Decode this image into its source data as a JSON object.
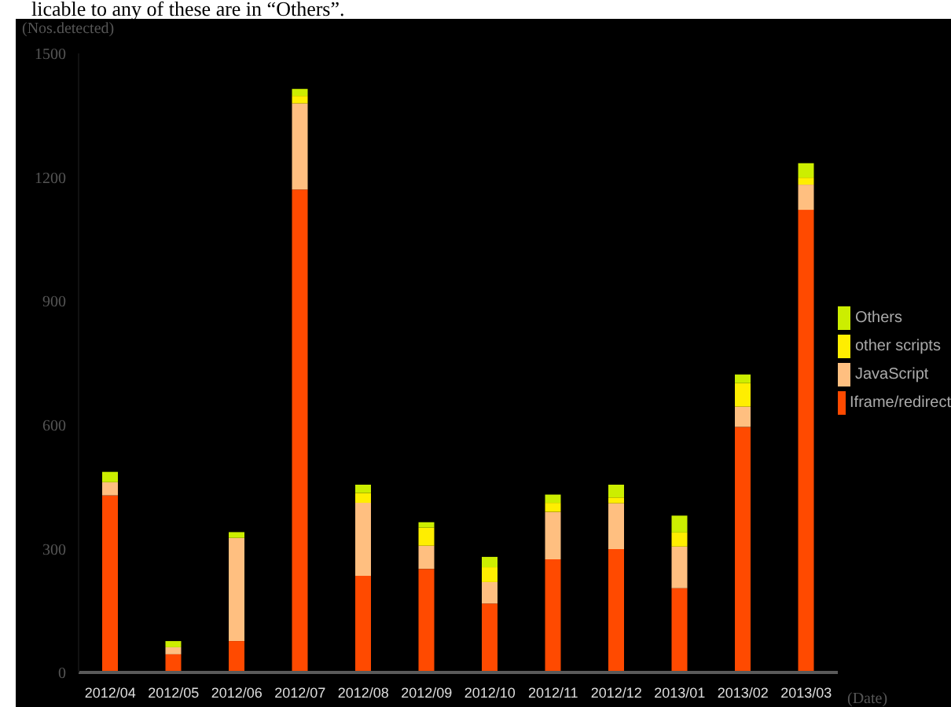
{
  "chart_data": {
    "type": "bar",
    "stacked": true,
    "ylabel": "(Nos.detected)",
    "xlabel": "(Date)",
    "annotations": [
      "licable to any of these are in “Others”."
    ],
    "categories": [
      "2012/04",
      "2012/05",
      "2012/06",
      "2012/07",
      "2012/08",
      "2012/09",
      "2012/10",
      "2012/11",
      "2012/12",
      "2013/01",
      "2013/02",
      "2013/03"
    ],
    "series": [
      {
        "name": "Iframe/redirect",
        "color": "#ff4a00",
        "values": [
          429,
          44,
          76,
          1170,
          234,
          251,
          167,
          274,
          299,
          204,
          595,
          1121
        ]
      },
      {
        "name": "JavaScript",
        "color": "#ffbf80",
        "values": [
          32,
          17,
          250,
          209,
          177,
          56,
          52,
          115,
          111,
          101,
          49,
          61
        ]
      },
      {
        "name": "other scripts",
        "color": "#ffee00",
        "values": [
          0,
          0,
          0,
          18,
          24,
          44,
          36,
          22,
          14,
          34,
          57,
          17
        ]
      },
      {
        "name": "Others",
        "color": "#ccee00",
        "values": [
          25,
          15,
          14,
          17,
          20,
          13,
          25,
          20,
          31,
          41,
          21,
          35
        ]
      }
    ],
    "ylim": [
      0,
      1500
    ],
    "yticks": [
      0,
      300,
      600,
      900,
      1200,
      1500
    ],
    "legend": "right"
  }
}
